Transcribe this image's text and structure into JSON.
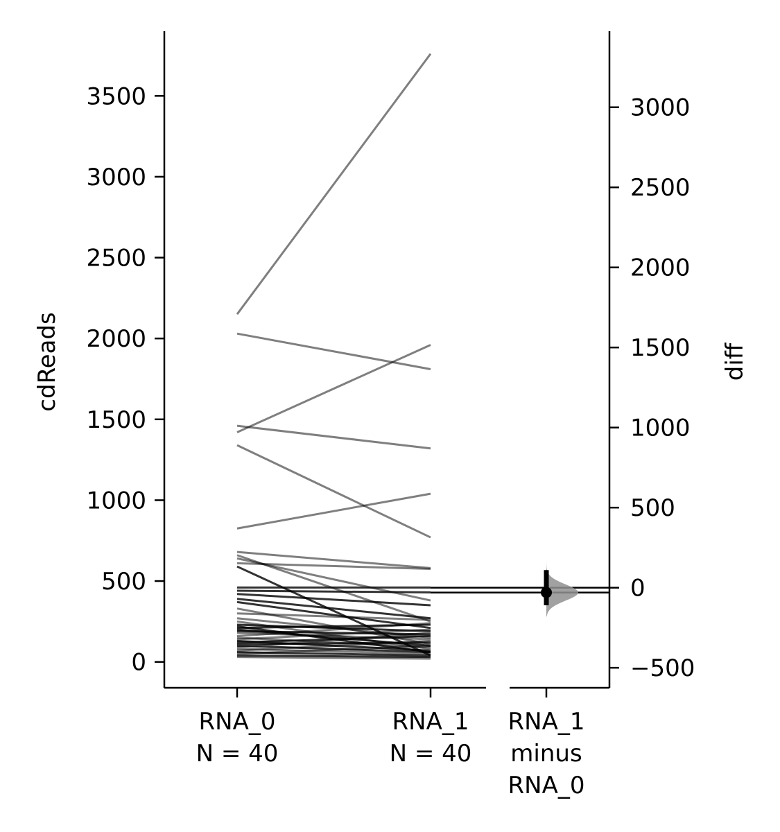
{
  "chart_data": {
    "type": "line",
    "left_axis": {
      "ylabel": "cdReads",
      "ylim": [
        -160,
        3900
      ],
      "ticks": [
        0,
        500,
        1000,
        1500,
        2000,
        2500,
        3000,
        3500
      ],
      "tick_labels": [
        "0",
        "500",
        "1000",
        "1500",
        "2000",
        "2500",
        "3000",
        "3500"
      ]
    },
    "right_axis": {
      "ylabel": "diff",
      "ylim": [
        -625,
        3475
      ],
      "ticks": [
        -500,
        0,
        500,
        1000,
        1500,
        2000,
        2500,
        3000
      ],
      "tick_labels": [
        "−500",
        "0",
        "500",
        "1000",
        "1500",
        "2000",
        "2500",
        "3000"
      ]
    },
    "categories": [
      {
        "lines": [
          "RNA_0",
          "N = 40"
        ]
      },
      {
        "lines": [
          "RNA_1",
          "N = 40"
        ]
      },
      {
        "lines": [
          "RNA_1",
          "minus",
          "RNA_0"
        ]
      }
    ],
    "pairs": [
      {
        "rna0": 2150,
        "rna1": 3760,
        "dark": false
      },
      {
        "rna0": 2030,
        "rna1": 1810,
        "dark": false
      },
      {
        "rna0": 1420,
        "rna1": 1960,
        "dark": false
      },
      {
        "rna0": 1460,
        "rna1": 1320,
        "dark": false
      },
      {
        "rna0": 1340,
        "rna1": 770,
        "dark": false
      },
      {
        "rna0": 825,
        "rna1": 1040,
        "dark": false
      },
      {
        "rna0": 680,
        "rna1": 580,
        "dark": false
      },
      {
        "rna0": 660,
        "rna1": 250,
        "dark": false
      },
      {
        "rna0": 640,
        "rna1": 380,
        "dark": false
      },
      {
        "rna0": 610,
        "rna1": 575,
        "dark": false
      },
      {
        "rna0": 590,
        "rna1": 40,
        "dark": true
      },
      {
        "rna0": 460,
        "rna1": 460,
        "dark": true
      },
      {
        "rna0": 440,
        "rna1": 430,
        "dark": true
      },
      {
        "rna0": 420,
        "rna1": 350,
        "dark": true
      },
      {
        "rna0": 390,
        "rna1": 270,
        "dark": true
      },
      {
        "rna0": 370,
        "rna1": 210,
        "dark": true
      },
      {
        "rna0": 330,
        "rna1": 110,
        "dark": false
      },
      {
        "rna0": 300,
        "rna1": 260,
        "dark": false
      },
      {
        "rna0": 270,
        "rna1": 150,
        "dark": false
      },
      {
        "rna0": 250,
        "rna1": 80,
        "dark": false
      },
      {
        "rna0": 230,
        "rna1": 190,
        "dark": true
      },
      {
        "rna0": 220,
        "rna1": 60,
        "dark": true
      },
      {
        "rna0": 210,
        "rna1": 230,
        "dark": true
      },
      {
        "rna0": 200,
        "rna1": 100,
        "dark": true
      },
      {
        "rna0": 190,
        "rna1": 170,
        "dark": true
      },
      {
        "rna0": 180,
        "rna1": 140,
        "dark": false
      },
      {
        "rna0": 160,
        "rna1": 240,
        "dark": false
      },
      {
        "rna0": 150,
        "rna1": 90,
        "dark": false
      },
      {
        "rna0": 140,
        "rna1": 200,
        "dark": false
      },
      {
        "rna0": 130,
        "rna1": 70,
        "dark": true
      },
      {
        "rna0": 120,
        "rna1": 160,
        "dark": true
      },
      {
        "rna0": 110,
        "rna1": 120,
        "dark": true
      },
      {
        "rna0": 100,
        "rna1": 60,
        "dark": true
      },
      {
        "rna0": 90,
        "rna1": 180,
        "dark": false
      },
      {
        "rna0": 80,
        "rna1": 50,
        "dark": false
      },
      {
        "rna0": 70,
        "rna1": 130,
        "dark": false
      },
      {
        "rna0": 60,
        "rna1": 40,
        "dark": true
      },
      {
        "rna0": 50,
        "rna1": 100,
        "dark": false
      },
      {
        "rna0": 40,
        "rna1": 30,
        "dark": true
      },
      {
        "rna0": 30,
        "rna1": 20,
        "dark": false
      }
    ],
    "effect_size": {
      "mean_diff": -30,
      "ci": [
        -110,
        110
      ],
      "distribution_range": [
        -180,
        200
      ],
      "color": "#909090"
    },
    "line_colors": {
      "normal": "#000000",
      "dark": "#000000"
    },
    "line_opacity": {
      "normal": 0.5,
      "dark": 0.8
    }
  }
}
